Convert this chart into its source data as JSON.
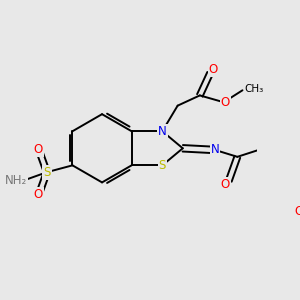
{
  "bg_color": "#e8e8e8",
  "bond_color": "#000000",
  "bond_width": 1.4,
  "atom_colors": {
    "N": "#0000ee",
    "O": "#ff0000",
    "S": "#bbbb00",
    "H": "#777777",
    "C": "#000000"
  },
  "font_size": 8.5
}
